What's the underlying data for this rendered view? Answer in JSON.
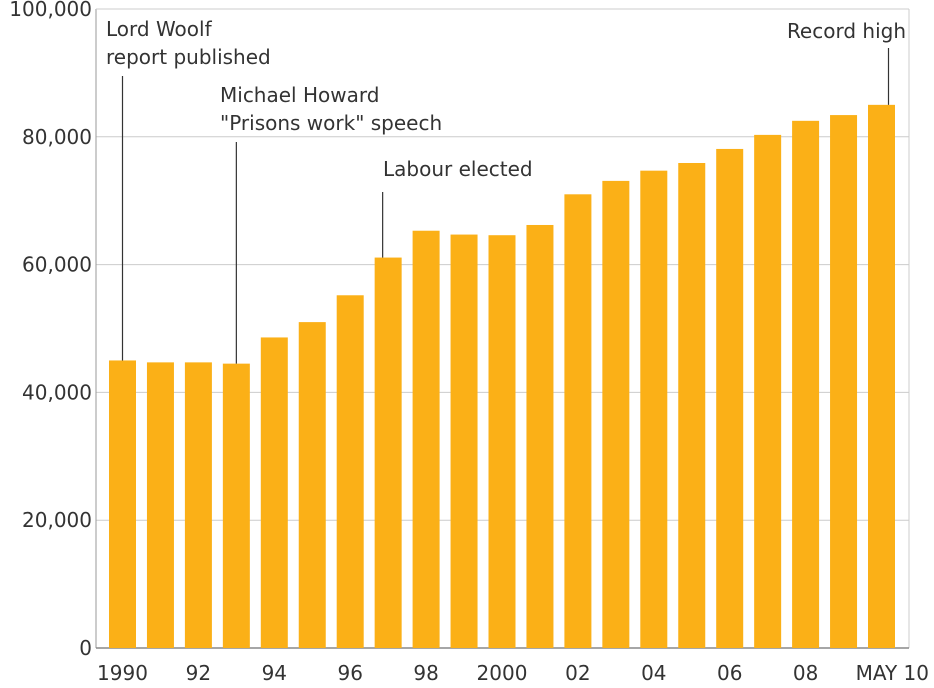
{
  "chart_data": {
    "type": "bar",
    "categories": [
      "1990",
      "1991",
      "1992",
      "1993",
      "1994",
      "1995",
      "1996",
      "1997",
      "1998",
      "1999",
      "2000",
      "2001",
      "2002",
      "2003",
      "2004",
      "2005",
      "2006",
      "2007",
      "2008",
      "2009",
      "May 2010"
    ],
    "values": [
      45000,
      44700,
      44700,
      44500,
      48600,
      51000,
      55200,
      61100,
      65300,
      64700,
      64600,
      66200,
      71000,
      73100,
      74700,
      75900,
      78100,
      80300,
      82500,
      83400,
      85000
    ],
    "x_tick_labels": [
      "1990",
      "",
      "92",
      "",
      "94",
      "",
      "96",
      "",
      "98",
      "",
      "2000",
      "",
      "02",
      "",
      "04",
      "",
      "06",
      "",
      "08",
      "",
      "MAY 10"
    ],
    "y_tick_labels": [
      "0",
      "20,000",
      "40,000",
      "60,000",
      "80,000",
      "100,000"
    ],
    "y_ticks": [
      0,
      20000,
      40000,
      60000,
      80000,
      100000
    ],
    "ylim": [
      0,
      100000
    ],
    "grid": true,
    "title": "",
    "xlabel": "",
    "ylabel": "",
    "bar_color": "#fbb017",
    "grid_color": "#cccccc",
    "annotations": [
      {
        "index": 0,
        "lines": [
          "Lord Woolf",
          "report published"
        ]
      },
      {
        "index": 3,
        "lines": [
          "Michael Howard",
          "\"Prisons work\" speech"
        ]
      },
      {
        "index": 7,
        "lines": [
          "Labour elected"
        ]
      },
      {
        "index": 20,
        "lines": [
          "Record high"
        ]
      }
    ]
  }
}
